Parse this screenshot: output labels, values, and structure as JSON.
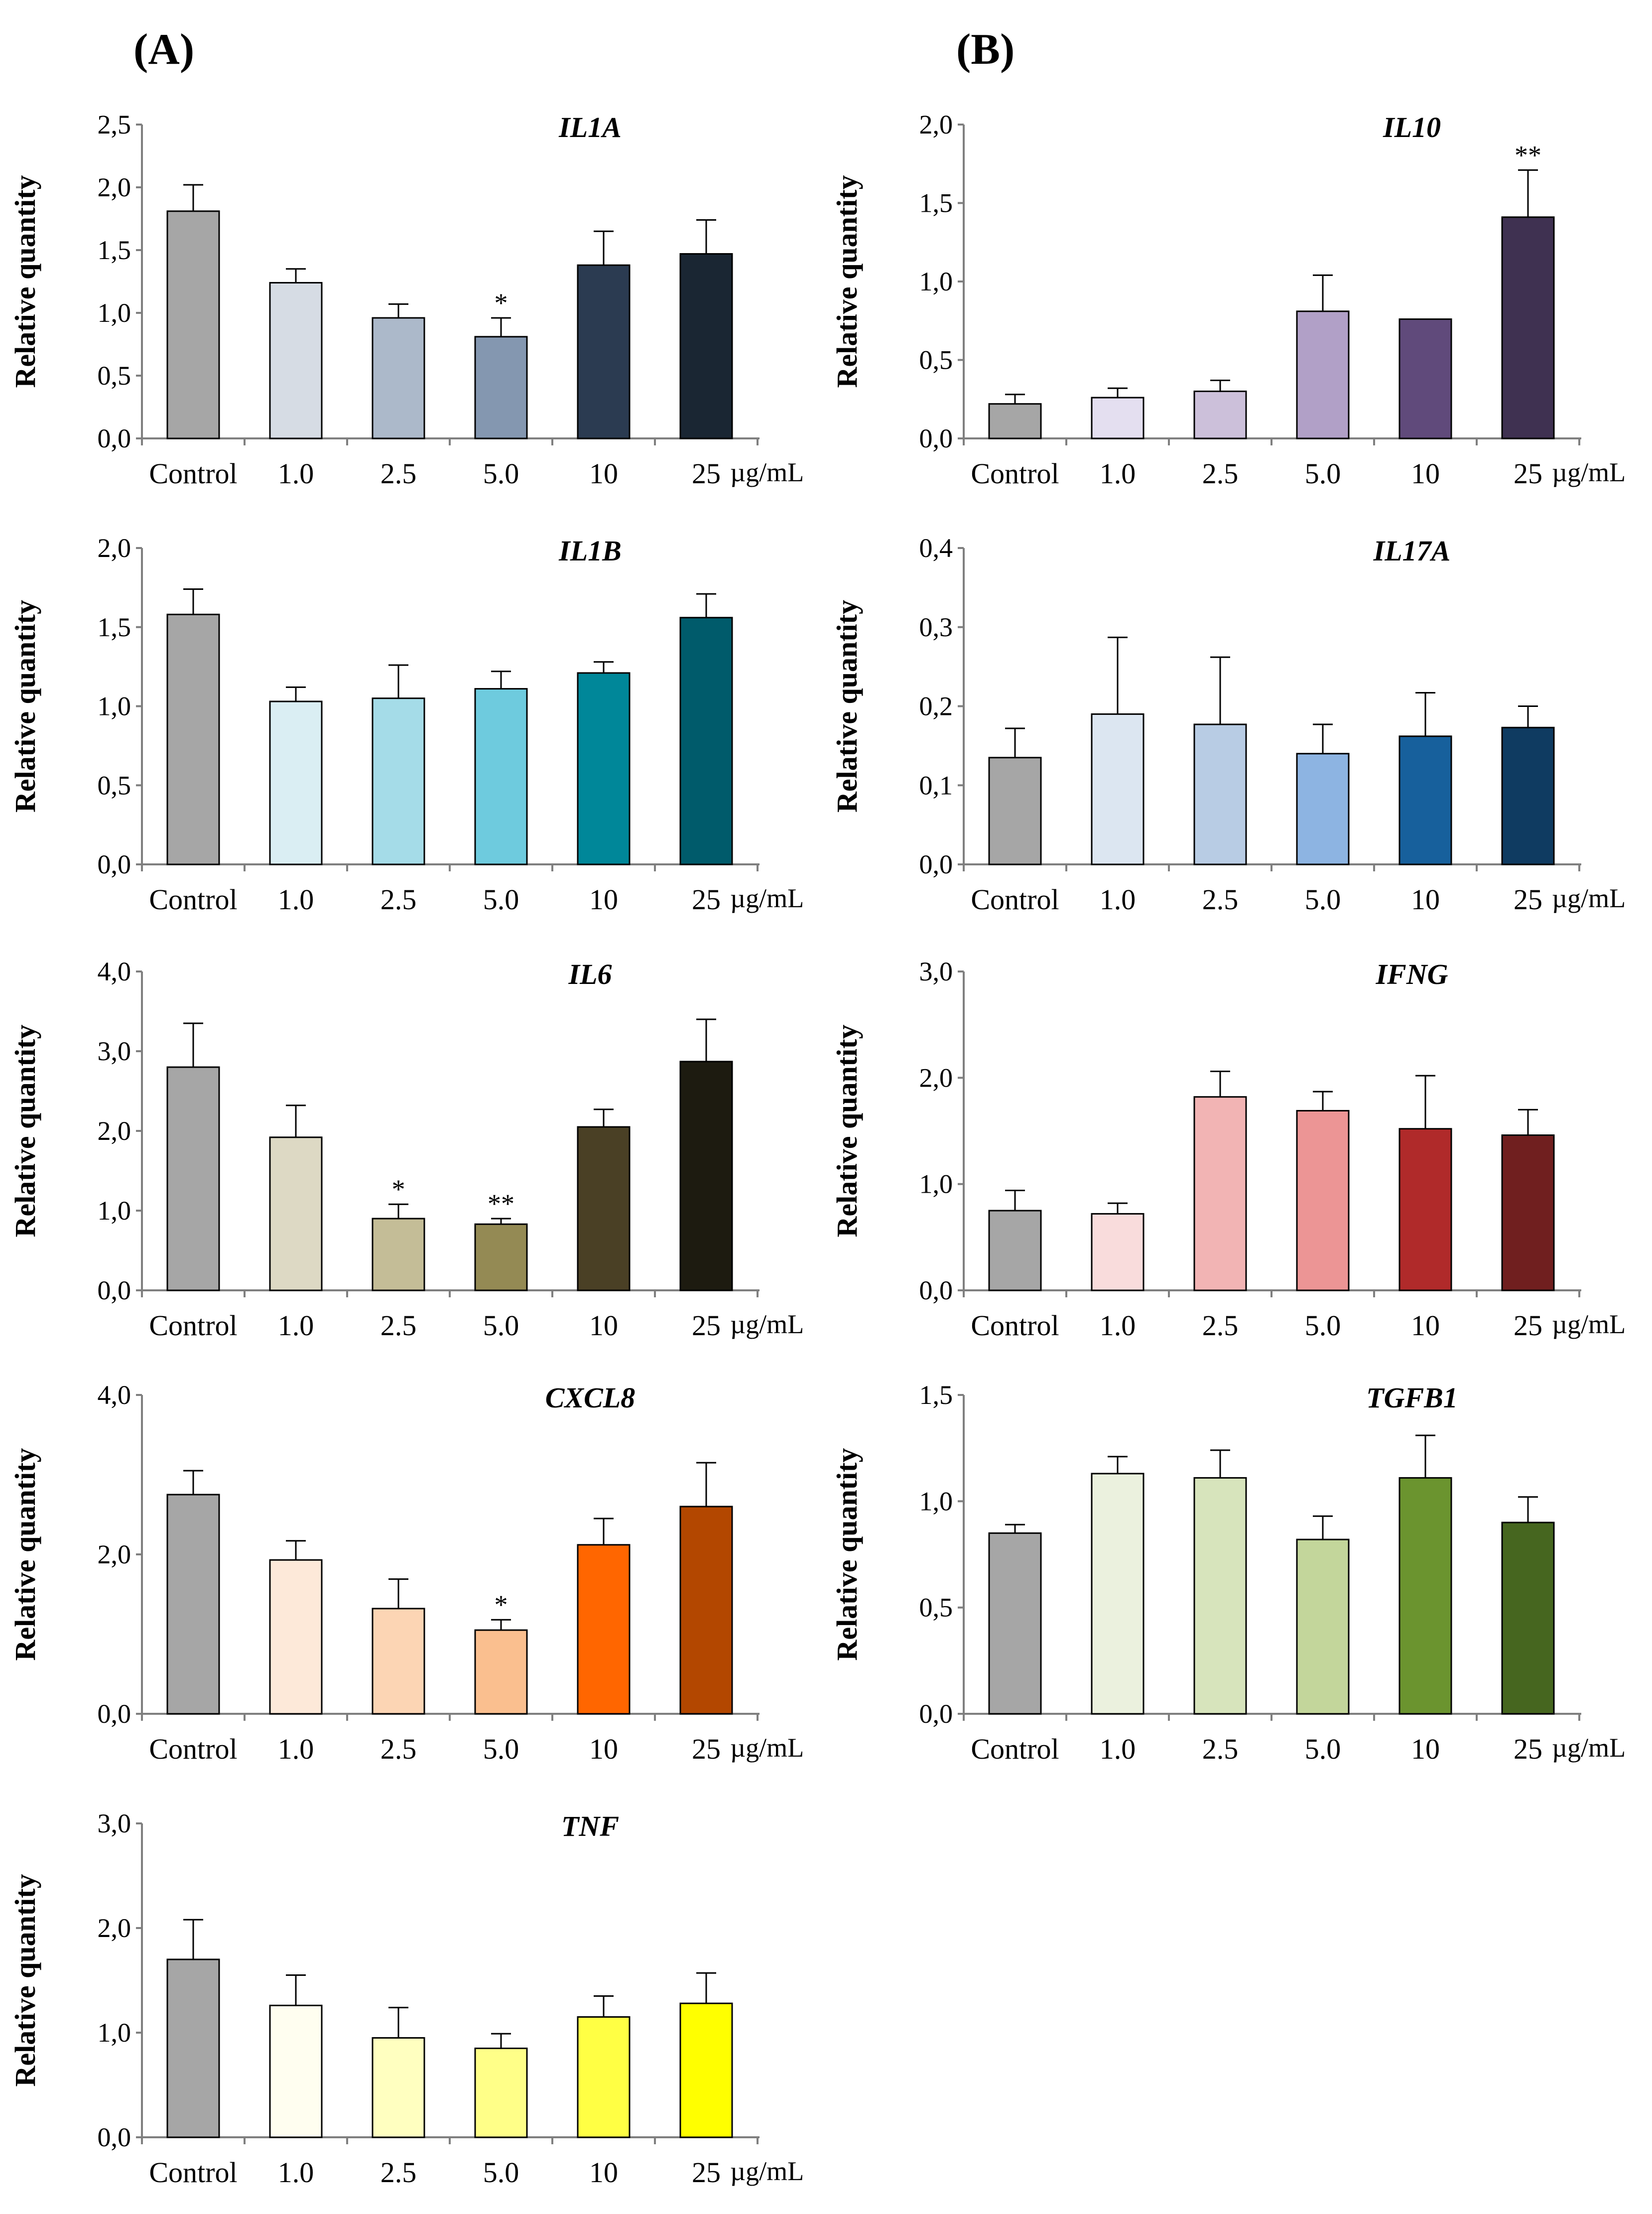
{
  "panel_labels": [
    "(A)",
    "(B)"
  ],
  "chart_data": [
    {
      "type": "bar",
      "panel": "(A)",
      "title": "IL1A",
      "ylabel": "Relative quantity",
      "unit": "µg/mL",
      "categories": [
        "Control",
        "1.0",
        "2.5",
        "5.0",
        "10",
        "25"
      ],
      "values": [
        1.81,
        1.24,
        0.96,
        0.81,
        1.38,
        1.47
      ],
      "errors": [
        0.21,
        0.11,
        0.11,
        0.15,
        0.27,
        0.27
      ],
      "significance": [
        "",
        "",
        "",
        "*",
        "",
        ""
      ],
      "colors": [
        "#a6a6a6",
        "#d6dce4",
        "#acb9ca",
        "#8497b0",
        "#2b3b51",
        "#1a2633"
      ],
      "ylim": [
        0,
        2.5
      ],
      "yticks": [
        "0,0",
        "0,5",
        "1,0",
        "1,5",
        "2,0",
        "2,5"
      ]
    },
    {
      "type": "bar",
      "panel": "(B)",
      "title": "IL10",
      "ylabel": "Relative quantity",
      "unit": "µg/mL",
      "categories": [
        "Control",
        "1.0",
        "2.5",
        "5.0",
        "10",
        "25"
      ],
      "values": [
        0.22,
        0.26,
        0.3,
        0.81,
        0.76,
        1.41
      ],
      "errors": [
        0.06,
        0.06,
        0.07,
        0.23,
        0.0,
        0.3
      ],
      "significance": [
        "",
        "",
        "",
        "",
        "",
        "**"
      ],
      "colors": [
        "#a6a6a6",
        "#e4dff0",
        "#ccc0da",
        "#b1a0c7",
        "#604a7b",
        "#3f3151"
      ],
      "ylim": [
        0,
        2.0
      ],
      "yticks": [
        "0,0",
        "0,5",
        "1,0",
        "1,5",
        "2,0"
      ]
    },
    {
      "type": "bar",
      "panel": "(A)",
      "title": "IL1B",
      "ylabel": "Relative quantity",
      "unit": "µg/mL",
      "categories": [
        "Control",
        "1.0",
        "2.5",
        "5.0",
        "10",
        "25"
      ],
      "values": [
        1.58,
        1.03,
        1.05,
        1.11,
        1.21,
        1.56
      ],
      "errors": [
        0.16,
        0.09,
        0.21,
        0.11,
        0.07,
        0.15
      ],
      "significance": [
        "",
        "",
        "",
        "",
        "",
        ""
      ],
      "colors": [
        "#a6a6a6",
        "#daeef3",
        "#a5dce8",
        "#6ecbde",
        "#008799",
        "#005b6b"
      ],
      "ylim": [
        0,
        2.0
      ],
      "yticks": [
        "0,0",
        "0,5",
        "1,0",
        "1,5",
        "2,0"
      ]
    },
    {
      "type": "bar",
      "panel": "(B)",
      "title": "IL17A",
      "ylabel": "Relative quantity",
      "unit": "µg/mL",
      "categories": [
        "Control",
        "1.0",
        "2.5",
        "5.0",
        "10",
        "25"
      ],
      "values": [
        0.135,
        0.19,
        0.177,
        0.14,
        0.162,
        0.173
      ],
      "errors": [
        0.037,
        0.097,
        0.085,
        0.037,
        0.055,
        0.027
      ],
      "significance": [
        "",
        "",
        "",
        "",
        "",
        ""
      ],
      "colors": [
        "#a6a6a6",
        "#dce6f1",
        "#b8cce4",
        "#8db4e2",
        "#17609c",
        "#0f3b61"
      ],
      "ylim": [
        0,
        0.4
      ],
      "yticks": [
        "0,0",
        "0,1",
        "0,2",
        "0,3",
        "0,4"
      ]
    },
    {
      "type": "bar",
      "panel": "(A)",
      "title": "IL6",
      "ylabel": "Relative quantity",
      "unit": "µg/mL",
      "categories": [
        "Control",
        "1.0",
        "2.5",
        "5.0",
        "10",
        "25"
      ],
      "values": [
        2.8,
        1.92,
        0.9,
        0.83,
        2.05,
        2.87
      ],
      "errors": [
        0.55,
        0.4,
        0.18,
        0.07,
        0.22,
        0.53
      ],
      "significance": [
        "",
        "",
        "*",
        "**",
        "",
        ""
      ],
      "colors": [
        "#a6a6a6",
        "#ddd9c4",
        "#c4bd97",
        "#948a54",
        "#4a4025",
        "#1d1b10"
      ],
      "ylim": [
        0,
        4.0
      ],
      "yticks": [
        "0,0",
        "1,0",
        "2,0",
        "3,0",
        "4,0"
      ]
    },
    {
      "type": "bar",
      "panel": "(B)",
      "title": "IFNG",
      "ylabel": "Relative quantity",
      "unit": "µg/mL",
      "categories": [
        "Control",
        "1.0",
        "2.5",
        "5.0",
        "10",
        "25"
      ],
      "values": [
        0.75,
        0.72,
        1.82,
        1.69,
        1.52,
        1.46
      ],
      "errors": [
        0.19,
        0.1,
        0.24,
        0.18,
        0.5,
        0.24
      ],
      "significance": [
        "",
        "",
        "",
        "",
        "",
        ""
      ],
      "colors": [
        "#a6a6a6",
        "#f9dcdc",
        "#f2b4b4",
        "#ec9595",
        "#b02a2a",
        "#701f1f"
      ],
      "ylim": [
        0,
        3.0
      ],
      "yticks": [
        "0,0",
        "1,0",
        "2,0",
        "3,0"
      ]
    },
    {
      "type": "bar",
      "panel": "(A)",
      "title": "CXCL8",
      "ylabel": "Relative quantity",
      "unit": "µg/mL",
      "categories": [
        "Control",
        "1.0",
        "2.5",
        "5.0",
        "10",
        "25"
      ],
      "values": [
        2.75,
        1.93,
        1.32,
        1.05,
        2.12,
        2.6
      ],
      "errors": [
        0.3,
        0.24,
        0.37,
        0.13,
        0.33,
        0.55
      ],
      "significance": [
        "",
        "",
        "",
        "*",
        "",
        ""
      ],
      "colors": [
        "#a6a6a6",
        "#fde9d9",
        "#fcd5b4",
        "#fabf8f",
        "#ff6600",
        "#b34700"
      ],
      "ylim": [
        0,
        4.0
      ],
      "yticks": [
        "0,0",
        "2,0",
        "4,0"
      ]
    },
    {
      "type": "bar",
      "panel": "(B)",
      "title": "TGFB1",
      "ylabel": "Relative quantity",
      "unit": "µg/mL",
      "categories": [
        "Control",
        "1.0",
        "2.5",
        "5.0",
        "10",
        "25"
      ],
      "values": [
        0.85,
        1.13,
        1.11,
        0.82,
        1.11,
        0.9
      ],
      "errors": [
        0.04,
        0.08,
        0.13,
        0.11,
        0.2,
        0.12
      ],
      "significance": [
        "",
        "",
        "",
        "",
        "",
        ""
      ],
      "colors": [
        "#a6a6a6",
        "#ebf1de",
        "#d7e4bc",
        "#c3d69b",
        "#6b942f",
        "#46661f"
      ],
      "ylim": [
        0,
        1.5
      ],
      "yticks": [
        "0,0",
        "0,5",
        "1,0",
        "1,5"
      ]
    },
    {
      "type": "bar",
      "panel": "(A)",
      "title": "TNF",
      "ylabel": "Relative quantity",
      "unit": "µg/mL",
      "categories": [
        "Control",
        "1.0",
        "2.5",
        "5.0",
        "10",
        "25"
      ],
      "values": [
        1.7,
        1.26,
        0.95,
        0.85,
        1.15,
        1.28
      ],
      "errors": [
        0.38,
        0.29,
        0.29,
        0.14,
        0.2,
        0.29
      ],
      "significance": [
        "",
        "",
        "",
        "",
        "",
        ""
      ],
      "colors": [
        "#a6a6a6",
        "#fffef0",
        "#ffffc0",
        "#ffff88",
        "#ffff44",
        "#ffff00"
      ],
      "ylim": [
        0,
        3.0
      ],
      "yticks": [
        "0,0",
        "1,0",
        "2,0",
        "3,0"
      ]
    }
  ]
}
